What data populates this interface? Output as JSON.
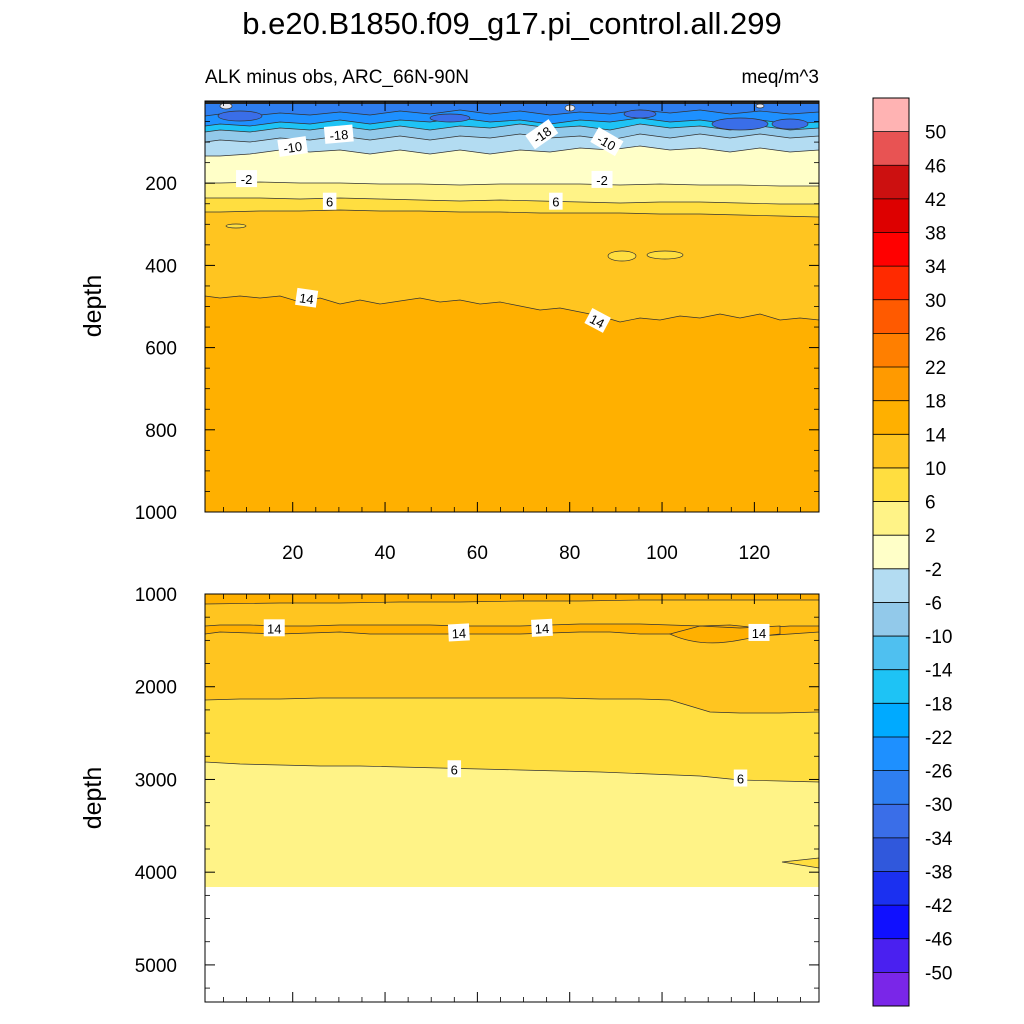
{
  "chart_data": {
    "type": "heatmap",
    "title": "b.e20.B1850.f09_g17.pi_control.all.299",
    "subtitle_left": "ALK minus obs, ARC_66N-90N",
    "subtitle_right": "meq/m^3",
    "x": {
      "ticks": [
        "20",
        "40",
        "60",
        "80",
        "100",
        "120"
      ],
      "tick_values": [
        20,
        40,
        60,
        80,
        100,
        120
      ],
      "range": [
        1,
        134
      ]
    },
    "panels": [
      {
        "name": "upper",
        "ylabel": "depth",
        "ylim": [
          0,
          1000
        ],
        "yticks": [
          "200",
          "400",
          "600",
          "800",
          "1000"
        ],
        "ytick_values": [
          200,
          400,
          600,
          800,
          1000
        ],
        "contour_labels": [
          {
            "text": "-18",
            "x": 30,
            "depth": 82,
            "angle": -5
          },
          {
            "text": "-10",
            "x": 20,
            "depth": 112,
            "angle": -8
          },
          {
            "text": "-18",
            "x": 74,
            "depth": 82,
            "angle": -35
          },
          {
            "text": "-10",
            "x": 88,
            "depth": 100,
            "angle": 30
          },
          {
            "text": "-2",
            "x": 10,
            "depth": 190,
            "angle": 0
          },
          {
            "text": "-2",
            "x": 87,
            "depth": 192,
            "angle": 0
          },
          {
            "text": "6",
            "x": 28,
            "depth": 245,
            "angle": 0
          },
          {
            "text": "6",
            "x": 77,
            "depth": 245,
            "angle": 0
          },
          {
            "text": "14",
            "x": 23,
            "depth": 480,
            "angle": 8
          },
          {
            "text": "14",
            "x": 86,
            "depth": 535,
            "angle": 28
          }
        ]
      },
      {
        "name": "lower",
        "ylabel": "depth",
        "ylim": [
          1000,
          5400
        ],
        "yticks": [
          "1000",
          "2000",
          "3000",
          "4000",
          "5000"
        ],
        "ytick_values": [
          1000,
          2000,
          3000,
          4000,
          5000
        ],
        "max_data_depth": 4130,
        "contour_labels": [
          {
            "text": "14",
            "x": 16,
            "depth": 1370,
            "angle": 0
          },
          {
            "text": "14",
            "x": 56,
            "depth": 1420,
            "angle": -3
          },
          {
            "text": "14",
            "x": 74,
            "depth": 1370,
            "angle": -3
          },
          {
            "text": "14",
            "x": 121,
            "depth": 1420,
            "angle": 0
          },
          {
            "text": "6",
            "x": 55,
            "depth": 2890,
            "angle": 0
          },
          {
            "text": "6",
            "x": 117,
            "depth": 2990,
            "angle": 0
          }
        ]
      }
    ],
    "colorbar": {
      "labels": [
        "50",
        "46",
        "42",
        "38",
        "34",
        "30",
        "26",
        "22",
        "18",
        "14",
        "10",
        "6",
        "2",
        "-2",
        "-6",
        "-10",
        "-14",
        "-18",
        "-22",
        "-26",
        "-30",
        "-34",
        "-38",
        "-42",
        "-46",
        "-50"
      ],
      "label_values": [
        50,
        46,
        42,
        38,
        34,
        30,
        26,
        22,
        18,
        14,
        10,
        6,
        2,
        -2,
        -6,
        -10,
        -14,
        -18,
        -22,
        -26,
        -30,
        -34,
        -38,
        -42,
        -46,
        -50
      ],
      "colors_top_to_bottom": [
        "#ffb3b3",
        "#e85353",
        "#cc1010",
        "#dd0000",
        "#ff0000",
        "#ff2a00",
        "#ff5a00",
        "#ff7f00",
        "#ff9a00",
        "#ffb000",
        "#ffc520",
        "#ffde40",
        "#fff387",
        "#ffffc8",
        "#b3dcf2",
        "#92c9ea",
        "#4fc0f0",
        "#1ec3f5",
        "#00aaff",
        "#1e90ff",
        "#2e7ef0",
        "#3a6ee8",
        "#3058dc",
        "#1b30f0",
        "#1010ff",
        "#4a20f0",
        "#7a26e8"
      ]
    }
  }
}
